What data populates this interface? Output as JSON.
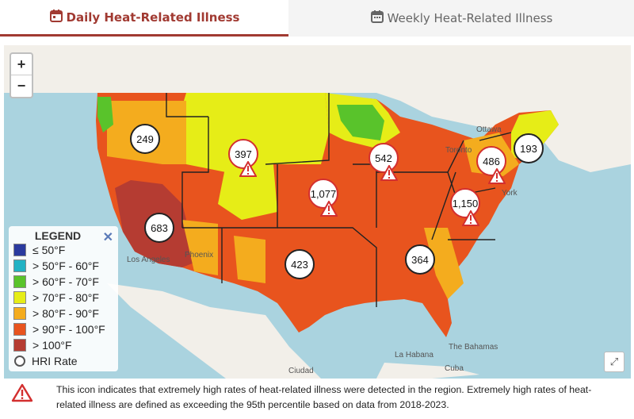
{
  "tabs": {
    "daily": "Daily Heat-Related Illness",
    "weekly": "Weekly Heat-Related Illness"
  },
  "zoom": {
    "in": "+",
    "out": "−"
  },
  "legend": {
    "title": "LEGEND",
    "close": "✕",
    "items": [
      {
        "label": "≤ 50°F",
        "color": "#2b3a9e"
      },
      {
        "label": "> 50°F - 60°F",
        "color": "#22b2c4"
      },
      {
        "label": "> 60°F - 70°F",
        "color": "#59c32b"
      },
      {
        "label": "> 70°F - 80°F",
        "color": "#e6ed17"
      },
      {
        "label": "> 80°F - 90°F",
        "color": "#f4ac1e"
      },
      {
        "label": "> 90°F - 100°F",
        "color": "#e8541e"
      },
      {
        "label": "> 100°F",
        "color": "#b53c32"
      }
    ],
    "hri_label": "HRI Rate"
  },
  "markers": [
    {
      "value": "249",
      "alert": false
    },
    {
      "value": "397",
      "alert": true
    },
    {
      "value": "1,077",
      "alert": true
    },
    {
      "value": "542",
      "alert": true
    },
    {
      "value": "486",
      "alert": true
    },
    {
      "value": "193",
      "alert": false
    },
    {
      "value": "1,150",
      "alert": true
    },
    {
      "value": "683",
      "alert": false
    },
    {
      "value": "423",
      "alert": false
    },
    {
      "value": "364",
      "alert": false
    }
  ],
  "places": {
    "ottawa": "Ottawa",
    "toronto": "Toronto",
    "york": "York",
    "los_angeles": "Los Angeles",
    "phoenix": "Phoenix",
    "la_habana": "La Habana",
    "bahamas": "The Bahamas",
    "cuba": "Cuba",
    "ciudad": "Ciudad"
  },
  "footnote": "This icon indicates that extremely high rates of heat-related illness were detected in the region. Extremely high rates of heat-related illness are defined as exceeding the 95th percentile based on data from 2018-2023."
}
